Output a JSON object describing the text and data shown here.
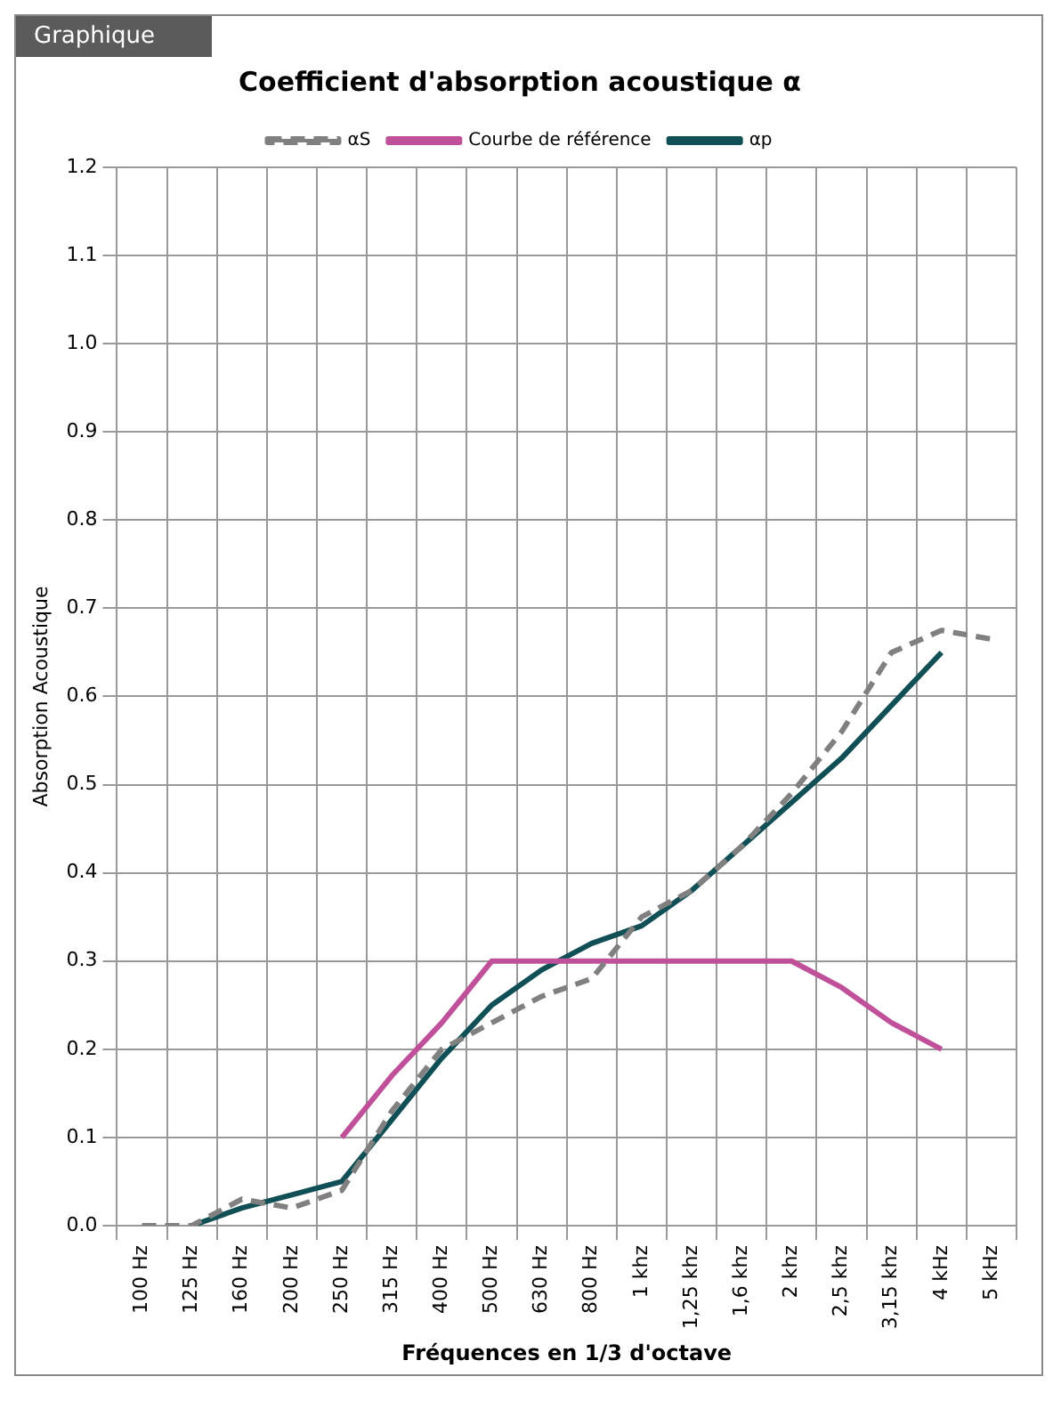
{
  "chart_data": {
    "type": "line",
    "title": "Coefficient d'absorption acoustique α",
    "xlabel": "Fréquences en 1/3 d'octave",
    "ylabel": "Absorption Acoustique",
    "annotations": [
      "Graphique"
    ],
    "categories": [
      "100 Hz",
      "125 Hz",
      "160 Hz",
      "200 Hz",
      "250 Hz",
      "315 Hz",
      "400 Hz",
      "500 Hz",
      "630 Hz",
      "800 Hz",
      "1 khz",
      "1,25 khz",
      "1,6 khz",
      "2 khz",
      "2,5 khz",
      "3,15 khz",
      "4 kHz",
      "5 kHz"
    ],
    "series": [
      {
        "name": "αS",
        "color": "#808080",
        "line_style": "dashed",
        "values": [
          0,
          0,
          0.03,
          0.02,
          0.04,
          0.13,
          0.2,
          0.23,
          0.26,
          0.28,
          0.35,
          0.38,
          0.43,
          0.49,
          0.56,
          0.65,
          0.675,
          0.665
        ]
      },
      {
        "name": "Courbe de référence",
        "color": "#c0509a",
        "line_style": "solid",
        "values": [
          null,
          null,
          null,
          null,
          0.1,
          0.17,
          0.23,
          0.3,
          0.3,
          0.3,
          0.3,
          0.3,
          0.3,
          0.3,
          0.27,
          0.23,
          0.2,
          null
        ]
      },
      {
        "name": "αp",
        "color": "#0f4f55",
        "line_style": "solid",
        "values": [
          null,
          0,
          0.02,
          0.035,
          0.05,
          0.12,
          0.19,
          0.25,
          0.29,
          0.32,
          0.34,
          0.38,
          0.43,
          0.48,
          0.53,
          0.59,
          0.65,
          null
        ]
      }
    ],
    "ylim": [
      0,
      1.2
    ],
    "yticks": [
      {
        "value": 0,
        "label": "0.0"
      },
      0.1,
      0.2,
      0.3,
      0.4,
      0.5,
      0.6,
      0.7,
      0.8,
      0.9,
      {
        "value": 1,
        "label": "1.0"
      },
      1.1,
      1.2
    ],
    "grid": true,
    "legend": "top",
    "marker": "none"
  }
}
